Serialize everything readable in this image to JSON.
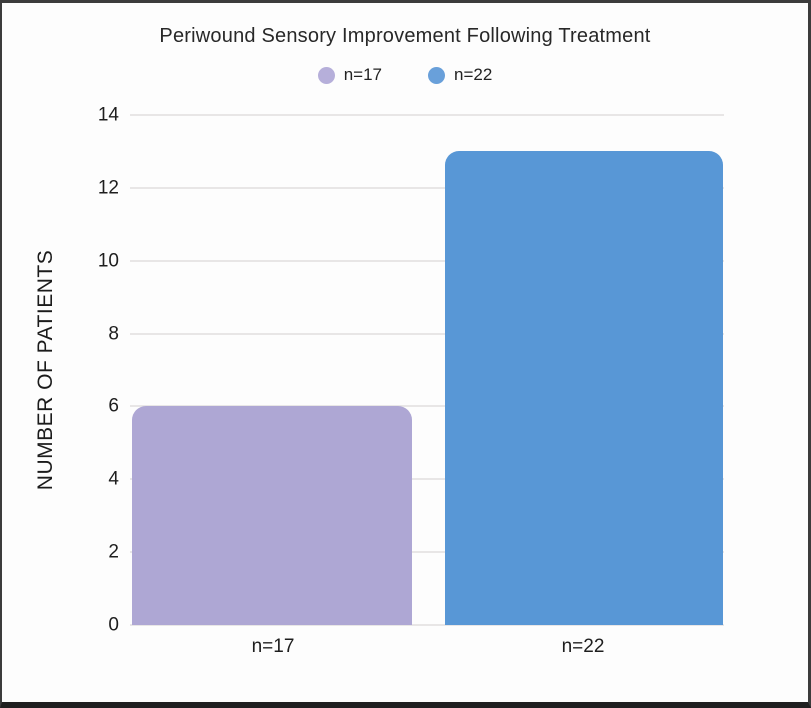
{
  "chart_data": {
    "type": "bar",
    "title": "Periwound Sensory Improvement Following Treatment",
    "ylabel": "NUMBER OF PATIENTS",
    "xlabel": "",
    "categories": [
      "n=17",
      "n=22"
    ],
    "values": [
      6,
      13
    ],
    "bar_colors": [
      "#aea7d4",
      "#5897d6"
    ],
    "ylim": [
      0,
      14
    ],
    "yticks": [
      0,
      2,
      4,
      6,
      8,
      10,
      12,
      14
    ],
    "grid": true,
    "gridline_color": "#e8e6e6",
    "legend_position": "top",
    "legend": [
      {
        "label": "n=17",
        "color": "#b6afda"
      },
      {
        "label": "n=22",
        "color": "#69a0da"
      }
    ],
    "background": "#fdfdfd",
    "text_color": "#1e1e1e"
  }
}
